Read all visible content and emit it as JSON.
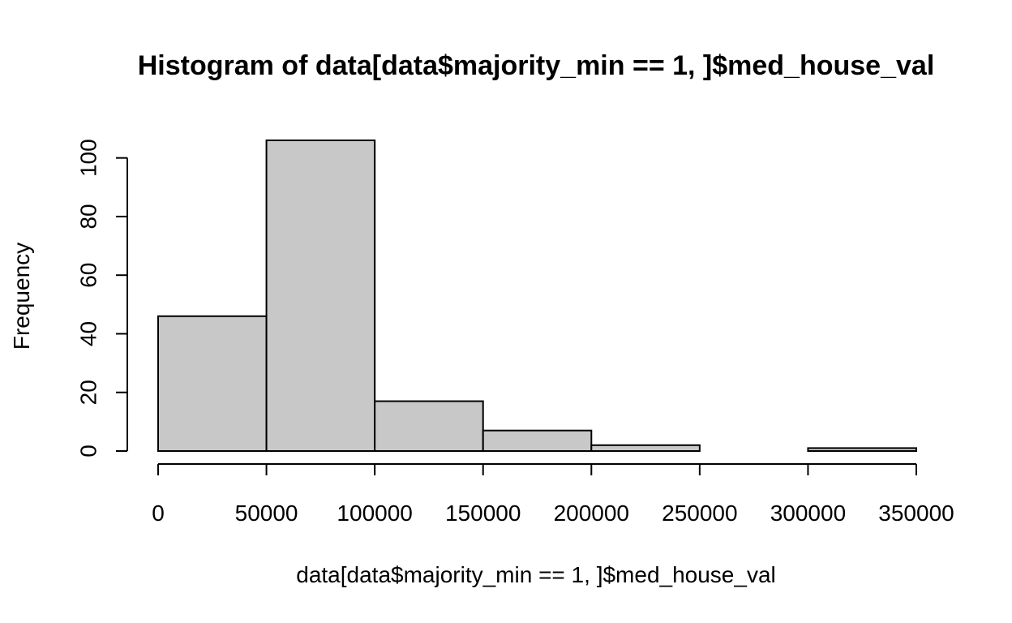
{
  "chart_data": {
    "type": "bar",
    "title": "Histogram of data[data$majority_min == 1, ]$med_house_val",
    "xlabel": "data[data$majority_min == 1, ]$med_house_val",
    "ylabel": "Frequency",
    "bins": [
      {
        "start": 0,
        "end": 50000,
        "count": 46
      },
      {
        "start": 50000,
        "end": 100000,
        "count": 106
      },
      {
        "start": 100000,
        "end": 150000,
        "count": 17
      },
      {
        "start": 150000,
        "end": 200000,
        "count": 7
      },
      {
        "start": 200000,
        "end": 250000,
        "count": 2
      },
      {
        "start": 250000,
        "end": 300000,
        "count": 0
      },
      {
        "start": 300000,
        "end": 350000,
        "count": 1
      }
    ],
    "xlim": [
      0,
      350000
    ],
    "ylim": [
      0,
      106
    ],
    "x_ticks": [
      "0",
      "50000",
      "100000",
      "150000",
      "200000",
      "250000",
      "300000",
      "350000"
    ],
    "y_ticks": [
      "0",
      "20",
      "40",
      "60",
      "80",
      "100"
    ],
    "grid": false,
    "bar_color": "#c8c8c8",
    "edge_color": "#000000"
  }
}
